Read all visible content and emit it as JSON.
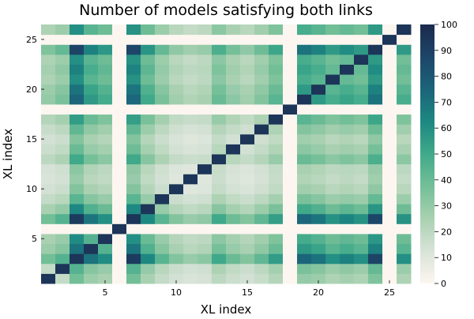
{
  "chart_data": {
    "type": "heatmap",
    "title": "Number of models satisfying both links",
    "xlabel": "XL index",
    "ylabel": "XL index",
    "x_range": [
      1,
      26
    ],
    "y_range": [
      1,
      26
    ],
    "x_ticks": [
      5,
      10,
      15,
      20,
      25
    ],
    "y_ticks": [
      5,
      10,
      15,
      20,
      25
    ],
    "colorbar": {
      "min": 0,
      "max": 100,
      "ticks": [
        0,
        10,
        20,
        30,
        40,
        50,
        60,
        70,
        80,
        90,
        100
      ],
      "colors": [
        "#fdf6f0",
        "#d8e3d8",
        "#a9d1b1",
        "#74bf98",
        "#40a98a",
        "#1d8882",
        "#1c647a",
        "#1d4568",
        "#1b2a4e"
      ]
    },
    "values": [
      [
        95,
        18,
        38,
        28,
        25,
        0,
        38,
        25,
        18,
        14,
        12,
        13,
        20,
        16,
        14,
        17,
        22,
        0,
        30,
        28,
        24,
        26,
        24,
        35,
        0,
        24
      ],
      [
        18,
        95,
        45,
        33,
        29,
        0,
        45,
        30,
        21,
        16,
        14,
        15,
        24,
        19,
        16,
        20,
        26,
        0,
        36,
        33,
        28,
        31,
        28,
        41,
        0,
        28
      ],
      [
        38,
        45,
        95,
        70,
        61,
        0,
        92,
        63,
        44,
        34,
        29,
        32,
        50,
        40,
        34,
        42,
        55,
        0,
        75,
        70,
        60,
        65,
        60,
        88,
        0,
        60
      ],
      [
        28,
        33,
        70,
        95,
        45,
        0,
        69,
        46,
        33,
        25,
        21,
        23,
        37,
        29,
        25,
        31,
        40,
        0,
        56,
        52,
        44,
        48,
        44,
        65,
        0,
        44
      ],
      [
        25,
        29,
        61,
        45,
        95,
        0,
        60,
        40,
        29,
        22,
        19,
        20,
        32,
        26,
        22,
        27,
        35,
        0,
        49,
        45,
        39,
        42,
        39,
        57,
        0,
        39
      ],
      [
        0,
        0,
        0,
        0,
        0,
        95,
        0,
        0,
        0,
        0,
        0,
        0,
        0,
        0,
        0,
        0,
        0,
        0,
        0,
        0,
        0,
        0,
        0,
        0,
        0,
        0
      ],
      [
        38,
        45,
        92,
        69,
        60,
        0,
        95,
        62,
        44,
        34,
        29,
        31,
        50,
        39,
        34,
        42,
        54,
        0,
        74,
        69,
        59,
        64,
        59,
        87,
        0,
        59
      ],
      [
        25,
        30,
        63,
        46,
        40,
        0,
        62,
        95,
        29,
        22,
        19,
        21,
        33,
        26,
        22,
        28,
        36,
        0,
        50,
        46,
        39,
        43,
        39,
        58,
        0,
        39
      ],
      [
        18,
        21,
        44,
        33,
        29,
        0,
        44,
        29,
        95,
        16,
        14,
        15,
        24,
        19,
        16,
        20,
        26,
        0,
        36,
        33,
        28,
        30,
        28,
        41,
        0,
        28
      ],
      [
        14,
        16,
        34,
        25,
        22,
        0,
        34,
        22,
        16,
        95,
        10,
        11,
        18,
        14,
        12,
        15,
        19,
        0,
        27,
        25,
        21,
        23,
        21,
        31,
        0,
        21
      ],
      [
        12,
        14,
        29,
        21,
        19,
        0,
        29,
        19,
        14,
        10,
        95,
        10,
        16,
        12,
        10,
        13,
        17,
        0,
        23,
        21,
        18,
        20,
        18,
        27,
        0,
        18
      ],
      [
        13,
        15,
        32,
        23,
        20,
        0,
        31,
        21,
        15,
        11,
        10,
        95,
        17,
        13,
        11,
        14,
        18,
        0,
        25,
        23,
        20,
        21,
        20,
        29,
        0,
        20
      ],
      [
        20,
        24,
        50,
        37,
        32,
        0,
        50,
        33,
        24,
        18,
        16,
        17,
        95,
        21,
        18,
        22,
        29,
        0,
        40,
        37,
        32,
        35,
        32,
        47,
        0,
        32
      ],
      [
        16,
        19,
        40,
        29,
        26,
        0,
        39,
        26,
        19,
        14,
        12,
        13,
        21,
        95,
        14,
        18,
        23,
        0,
        32,
        29,
        25,
        27,
        25,
        37,
        0,
        25
      ],
      [
        14,
        16,
        34,
        25,
        22,
        0,
        34,
        22,
        16,
        12,
        10,
        11,
        18,
        14,
        95,
        15,
        19,
        0,
        27,
        25,
        21,
        23,
        21,
        31,
        0,
        21
      ],
      [
        17,
        20,
        42,
        31,
        27,
        0,
        42,
        28,
        20,
        15,
        13,
        14,
        22,
        18,
        15,
        95,
        24,
        0,
        34,
        31,
        27,
        29,
        27,
        39,
        0,
        27
      ],
      [
        22,
        26,
        55,
        40,
        35,
        0,
        54,
        36,
        26,
        19,
        17,
        18,
        29,
        23,
        19,
        24,
        95,
        0,
        44,
        40,
        35,
        38,
        35,
        51,
        0,
        35
      ],
      [
        0,
        0,
        0,
        0,
        0,
        0,
        0,
        0,
        0,
        0,
        0,
        0,
        0,
        0,
        0,
        0,
        0,
        95,
        0,
        0,
        0,
        0,
        0,
        0,
        0,
        0
      ],
      [
        30,
        36,
        75,
        56,
        49,
        0,
        74,
        50,
        36,
        27,
        23,
        25,
        40,
        32,
        27,
        34,
        44,
        0,
        95,
        56,
        48,
        52,
        48,
        70,
        0,
        48
      ],
      [
        28,
        33,
        70,
        52,
        45,
        0,
        69,
        46,
        33,
        25,
        21,
        23,
        37,
        29,
        25,
        31,
        40,
        0,
        56,
        95,
        44,
        48,
        44,
        65,
        0,
        44
      ],
      [
        24,
        28,
        60,
        44,
        39,
        0,
        59,
        39,
        28,
        21,
        18,
        20,
        32,
        25,
        21,
        27,
        35,
        0,
        48,
        44,
        95,
        41,
        38,
        56,
        0,
        38
      ],
      [
        26,
        31,
        65,
        48,
        42,
        0,
        64,
        43,
        30,
        23,
        20,
        21,
        35,
        27,
        23,
        29,
        38,
        0,
        52,
        48,
        41,
        95,
        41,
        61,
        0,
        41
      ],
      [
        24,
        28,
        60,
        44,
        39,
        0,
        59,
        39,
        28,
        21,
        18,
        20,
        32,
        25,
        21,
        27,
        35,
        0,
        48,
        44,
        38,
        41,
        95,
        56,
        0,
        38
      ],
      [
        35,
        41,
        88,
        65,
        57,
        0,
        87,
        58,
        41,
        31,
        27,
        29,
        47,
        37,
        31,
        39,
        51,
        0,
        70,
        65,
        56,
        61,
        56,
        95,
        0,
        56
      ],
      [
        0,
        0,
        0,
        0,
        0,
        0,
        0,
        0,
        0,
        0,
        0,
        0,
        0,
        0,
        0,
        0,
        0,
        0,
        0,
        0,
        0,
        0,
        0,
        0,
        95,
        0
      ],
      [
        24,
        28,
        60,
        44,
        39,
        0,
        59,
        39,
        28,
        21,
        18,
        20,
        32,
        25,
        21,
        27,
        35,
        0,
        48,
        44,
        38,
        41,
        38,
        56,
        0,
        95
      ]
    ]
  }
}
